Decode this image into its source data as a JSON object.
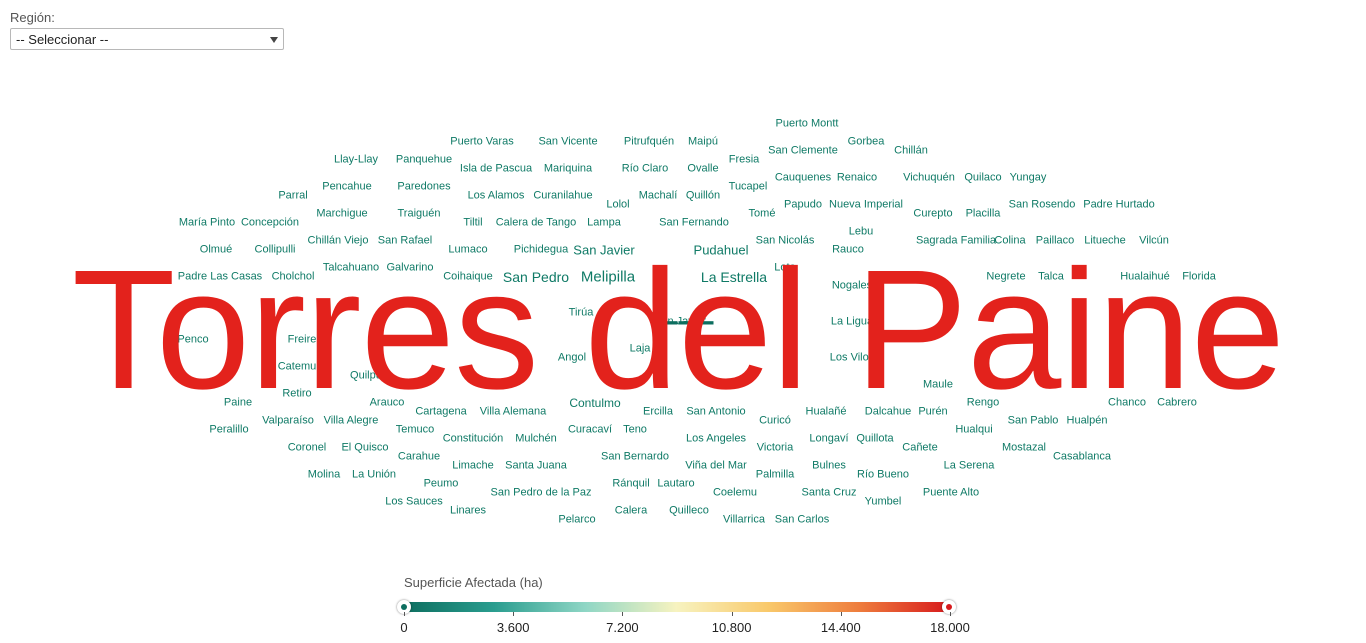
{
  "filter": {
    "label": "Región:",
    "selected": "-- Seleccionar --"
  },
  "highlight": {
    "text": "Torres del Paine",
    "color": "#e3221c"
  },
  "word_color": "#0f7a66",
  "words": [
    "Puerto Montt",
    "Puerto Varas",
    "San Vicente",
    "Pitrufquén",
    "Maipú",
    "Gorbea",
    "San Clemente",
    "Chillán",
    "Llay-Llay",
    "Panquehue",
    "Isla de Pascua",
    "Mariquina",
    "Río Claro",
    "Ovalle",
    "Fresia",
    "Cauquenes",
    "Renaico",
    "Vichuquén",
    "Quilaco",
    "Yungay",
    "Pencahue",
    "Paredones",
    "Los Alamos",
    "Curanilahue",
    "Machalí",
    "Quillón",
    "Tucapel",
    "Parral",
    "Lolol",
    "Papudo",
    "Nueva Imperial",
    "San Rosendo",
    "Padre Hurtado",
    "Marchigue",
    "Traiguén",
    "Tiltil",
    "Calera de Tango",
    "Lampa",
    "San Fernando",
    "Tomé",
    "Curepto",
    "Placilla",
    "María Pinto",
    "Concepción",
    "Lebu",
    "Chillán Viejo",
    "San Rafael",
    "San Nicolás",
    "Sagrada Familia",
    "Colina",
    "Paillaco",
    "Litueche",
    "Vilcún",
    "Olmué",
    "Collipulli",
    "Lumaco",
    "Pichidegua",
    "San Javier",
    "Pudahuel",
    "Rauco",
    "Talcahuano",
    "Galvarino",
    "Lota",
    "Padre Las Casas",
    "Cholchol",
    "Coihaique",
    "San Pedro",
    "Melipilla",
    "La Estrella",
    "Negrete",
    "Talca",
    "Hualaihué",
    "Florida",
    "Nogales",
    "Tirúa",
    "San Javier",
    "Penco",
    "Freire",
    "La Ligua",
    "Laja",
    "Catemu",
    "Angol",
    "Los Vilos",
    "Quilpué",
    "Retiro",
    "Maule",
    "Paine",
    "Arauco",
    "Contulmo",
    "Rengo",
    "Chanco",
    "Cabrero",
    "Cartagena",
    "Villa Alemana",
    "Ercilla",
    "San Antonio",
    "Curicó",
    "Hualañé",
    "Dalcahue",
    "Purén",
    "Valparaíso",
    "Villa Alegre",
    "Peralillo",
    "Temuco",
    "Curacaví",
    "Teno",
    "Hualqui",
    "San Pablo",
    "Hualpén",
    "Constitución",
    "Mulchén",
    "Los Angeles",
    "Longaví",
    "Quillota",
    "Coronel",
    "El Quisco",
    "Victoria",
    "Cañete",
    "Mostazal",
    "Carahue",
    "San Bernardo",
    "Casablanca",
    "Limache",
    "Santa Juana",
    "Viña del Mar",
    "Bulnes",
    "La Serena",
    "Molina",
    "La Unión",
    "Palmilla",
    "Río Bueno",
    "Peumo",
    "Ránquil",
    "Lautaro",
    "Coelemu",
    "Santa Cruz",
    "Puente Alto",
    "San Pedro de la Paz",
    "Los Sauces",
    "Yumbel",
    "Linares",
    "Calera",
    "Quilleco",
    "Pelarco",
    "Villarrica",
    "San Carlos"
  ],
  "legend": {
    "title": "Superficie Afectada (ha)",
    "ticks": [
      "0",
      "3.600",
      "7.200",
      "10.800",
      "14.400",
      "18.000"
    ],
    "colors": [
      "#0d6e5f",
      "#2a9d8f",
      "#8fd6c5",
      "#f7f3c0",
      "#f9c96b",
      "#ee7d3d",
      "#d7191c"
    ]
  }
}
